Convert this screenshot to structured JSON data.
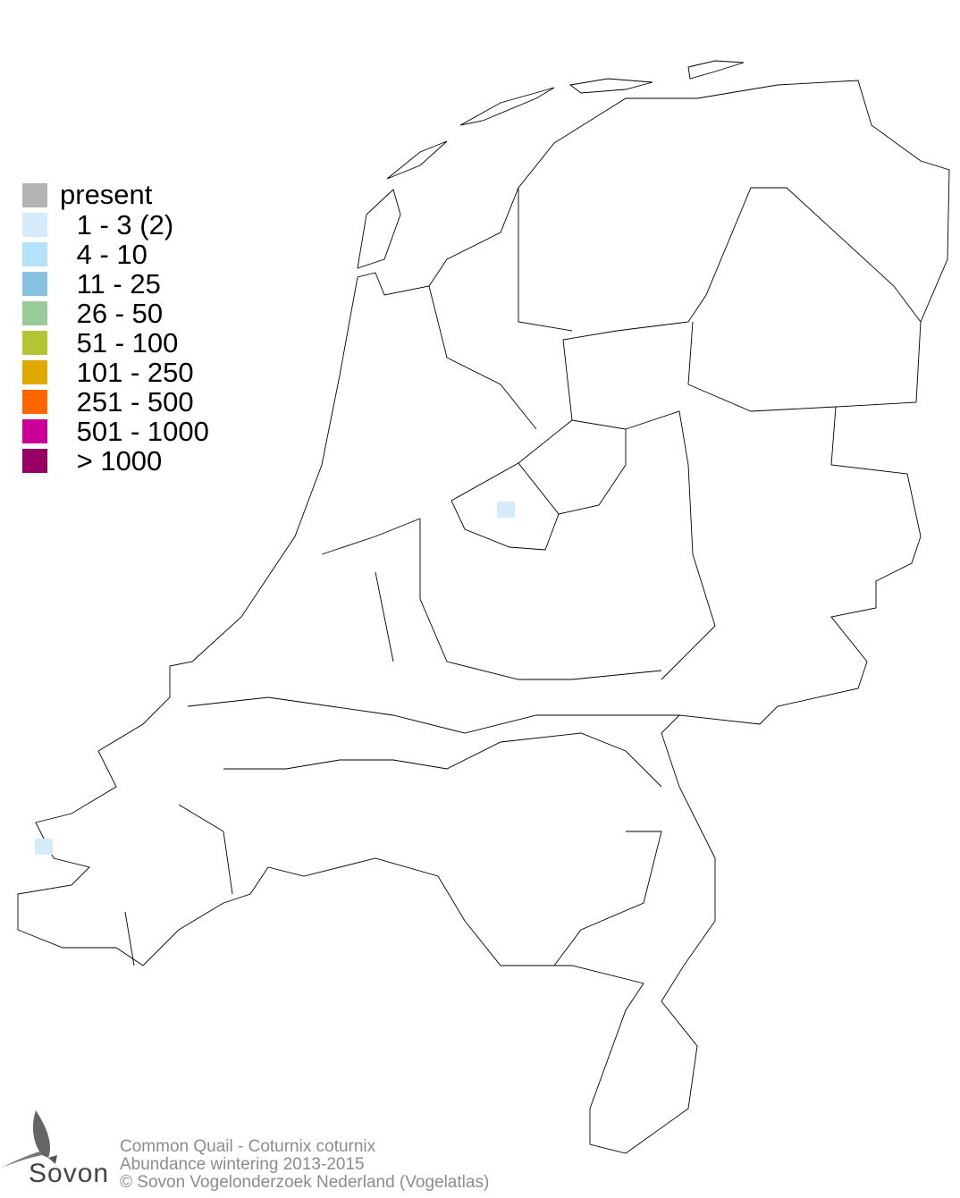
{
  "legend": {
    "items": [
      {
        "label": "present",
        "color": "#b3b3b3"
      },
      {
        "label": " 1 - 3 (2)",
        "color": "#d6ebfa"
      },
      {
        "label": " 4 - 10",
        "color": "#b3e2fa"
      },
      {
        "label": " 11 - 25",
        "color": "#89c2e0"
      },
      {
        "label": " 26 - 50",
        "color": "#99cc99"
      },
      {
        "label": " 51 - 100",
        "color": "#b3c434"
      },
      {
        "label": " 101 - 250",
        "color": "#e0aa00"
      },
      {
        "label": " 251 - 500",
        "color": "#ff6600"
      },
      {
        "label": " 501 - 1000",
        "color": "#cc0099"
      },
      {
        "label": " > 1000",
        "color": "#990066"
      }
    ]
  },
  "occupied_cells": [
    {
      "category": "1 - 3",
      "location": "Flevoland"
    },
    {
      "category": "1 - 3",
      "location": "Walcheren"
    }
  ],
  "credits": {
    "species": "Common Quail - Coturnix coturnix",
    "subtitle": "Abundance wintering 2013-2015",
    "copyright": "© Sovon Vogelonderzoek Nederland (Vogelatlas)"
  },
  "logo": {
    "text": "Sovon"
  }
}
